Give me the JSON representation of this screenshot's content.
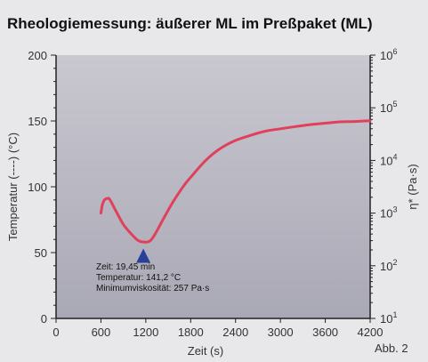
{
  "chart_data": {
    "type": "line",
    "title": "Rheologiemessung: äußerer ML im Preßpaket (ML)",
    "xlabel": "Zeit (s)",
    "ylabel_left": "Temperatur (----) (°C)",
    "ylabel_right": "η* (Pa·s)",
    "figure_label": "Abb. 2",
    "xlim": [
      0,
      4200
    ],
    "ylim_left": [
      0,
      200
    ],
    "ylim_right_exponents": [
      1,
      6
    ],
    "right_axis_scale": "log",
    "x_ticks": [
      "0",
      "600",
      "1200",
      "1800",
      "2400",
      "3000",
      "3600",
      "4200"
    ],
    "y_ticks_left": [
      "0",
      "50",
      "100",
      "150",
      "200"
    ],
    "y_ticks_right": [
      {
        "base": "10",
        "exp": "1"
      },
      {
        "base": "10",
        "exp": "2"
      },
      {
        "base": "10",
        "exp": "3"
      },
      {
        "base": "10",
        "exp": "4"
      },
      {
        "base": "10",
        "exp": "5"
      },
      {
        "base": "10",
        "exp": "6"
      }
    ],
    "grid": false,
    "series": [
      {
        "color": "#e0405a",
        "axis": "right",
        "unit": "Pa·s",
        "points": [
          [
            600,
            1000
          ],
          [
            620,
            1450
          ],
          [
            650,
            1800
          ],
          [
            690,
            1900
          ],
          [
            720,
            1800
          ],
          [
            800,
            1100
          ],
          [
            900,
            610
          ],
          [
            1000,
            410
          ],
          [
            1100,
            300
          ],
          [
            1200,
            280
          ],
          [
            1260,
            300
          ],
          [
            1320,
            390
          ],
          [
            1440,
            800
          ],
          [
            1560,
            1600
          ],
          [
            1700,
            3200
          ],
          [
            1800,
            4800
          ],
          [
            2000,
            10000
          ],
          [
            2200,
            17000
          ],
          [
            2400,
            24000
          ],
          [
            2600,
            30000
          ],
          [
            2800,
            36000
          ],
          [
            3000,
            40000
          ],
          [
            3200,
            44000
          ],
          [
            3400,
            48000
          ],
          [
            3600,
            51000
          ],
          [
            3800,
            54000
          ],
          [
            4000,
            55000
          ],
          [
            4200,
            57000
          ]
        ]
      }
    ],
    "marker": {
      "x": 1167,
      "y": 257,
      "color": "#2a3f98",
      "annotation": [
        "Zeit: 19,45 min",
        "Temperatur: 141,2 °C",
        "Minimumviskosität: 257 Pa·s"
      ]
    },
    "plot_background": "#b6b5c0"
  }
}
